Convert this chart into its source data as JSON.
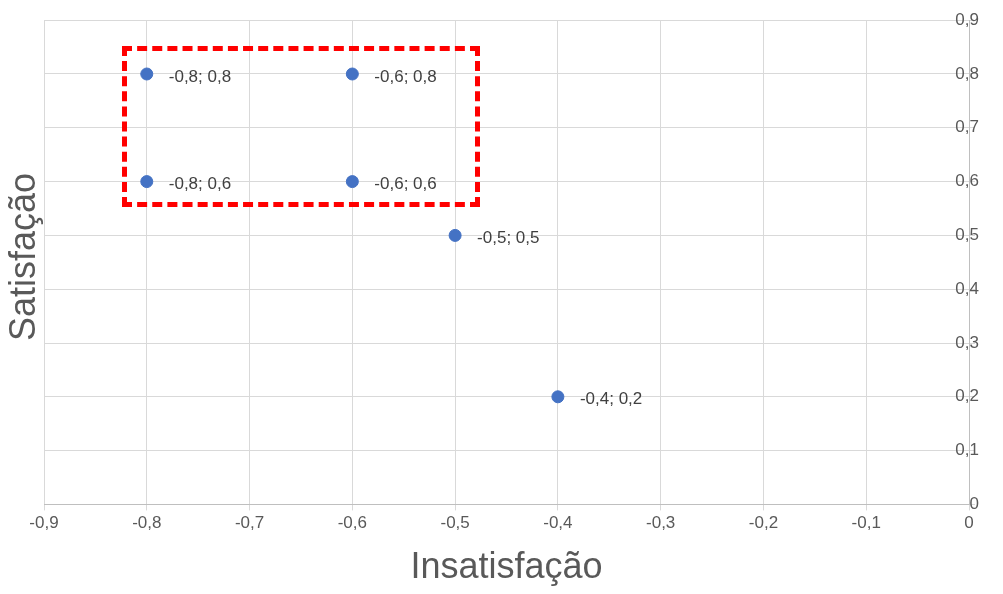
{
  "chart_data": {
    "type": "scatter",
    "xlabel": "Insatisfação",
    "ylabel": "Satisfação",
    "x": [
      -0.8,
      -0.6,
      -0.8,
      -0.6,
      -0.5,
      -0.4
    ],
    "values": [
      0.8,
      0.8,
      0.6,
      0.6,
      0.5,
      0.2
    ],
    "value_labels": [
      "-0,8; 0,8",
      "-0,6; 0,8",
      "-0,8; 0,6",
      "-0,6; 0,6",
      "-0,5; 0,5",
      "-0,4; 0,2"
    ],
    "color": "#4472c4",
    "marker": "circle",
    "xlim": [
      -0.9,
      0
    ],
    "xticks": [
      {
        "value": -0.9,
        "label": "-0,9"
      },
      {
        "value": -0.8,
        "label": "-0,8"
      },
      {
        "value": -0.7,
        "label": "-0,7"
      },
      {
        "value": -0.6,
        "label": "-0,6"
      },
      {
        "value": -0.5,
        "label": "-0,5"
      },
      {
        "value": -0.4,
        "label": "-0,4"
      },
      {
        "value": -0.3,
        "label": "-0,3"
      },
      {
        "value": -0.2,
        "label": "-0,2"
      },
      {
        "value": -0.1,
        "label": "-0,1"
      },
      0
    ],
    "ylim": [
      0,
      0.9
    ],
    "yticks": [
      0,
      {
        "value": 0.1,
        "label": "0,1"
      },
      {
        "value": 0.2,
        "label": "0,2"
      },
      {
        "value": 0.3,
        "label": "0,3"
      },
      {
        "value": 0.4,
        "label": "0,4"
      },
      {
        "value": 0.5,
        "label": "0,5"
      },
      {
        "value": 0.6,
        "label": "0,6"
      },
      {
        "value": 0.7,
        "label": "0,7"
      },
      {
        "value": 0.8,
        "label": "0,8"
      },
      {
        "value": 0.9,
        "label": "0,9"
      }
    ],
    "grid": true
  }
}
